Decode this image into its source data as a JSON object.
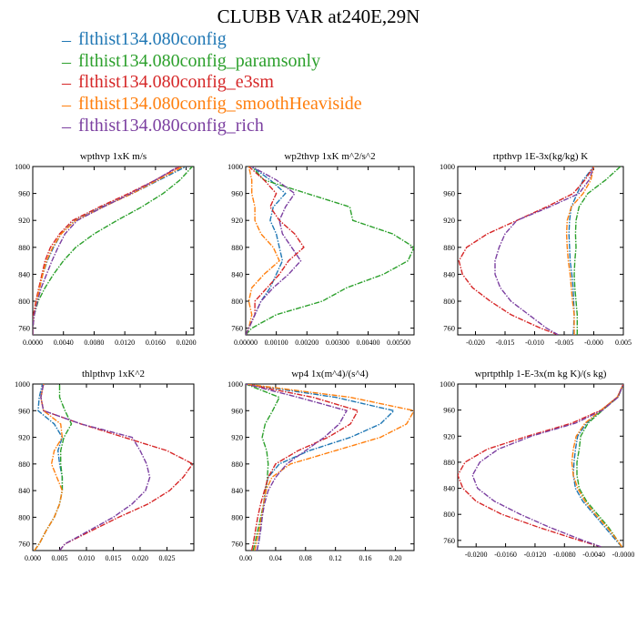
{
  "title": "CLUBB VAR at240E,29N",
  "series": [
    {
      "name": "flthist134.080config",
      "color": "#1f77b4"
    },
    {
      "name": "flthist134.080config_paramsonly",
      "color": "#2ca02c"
    },
    {
      "name": "flthist134.080config_e3sm",
      "color": "#d62728"
    },
    {
      "name": "flthist134.080config_smoothHeaviside",
      "color": "#ff7f0e"
    },
    {
      "name": "flthist134.080config_rich",
      "color": "#7b3fa0"
    }
  ],
  "chart_data": [
    {
      "type": "line",
      "title": "wpthvp   1xK m/s",
      "ylim": [
        1000,
        750
      ],
      "xlim": [
        0,
        0.021
      ],
      "yticks": [
        760,
        800,
        840,
        880,
        920,
        960,
        1000
      ],
      "xticks": [
        0.0,
        0.004,
        0.008,
        0.012,
        0.016,
        0.02
      ],
      "xticklabels": [
        "0.0000",
        "0.0040",
        "0.0080",
        "0.0120",
        "0.0160",
        "0.0200"
      ],
      "y": [
        750,
        760,
        780,
        800,
        820,
        840,
        860,
        880,
        900,
        920,
        940,
        960,
        980,
        1000
      ],
      "series_x": [
        [
          0.0,
          0.0,
          0.0002,
          0.0005,
          0.0009,
          0.0013,
          0.0019,
          0.0027,
          0.0037,
          0.0055,
          0.009,
          0.013,
          0.0165,
          0.02
        ],
        [
          0.0,
          0.0,
          0.0002,
          0.0007,
          0.0016,
          0.0027,
          0.004,
          0.0056,
          0.008,
          0.011,
          0.0142,
          0.017,
          0.0192,
          0.0208
        ],
        [
          0.0,
          0.0,
          0.0001,
          0.0004,
          0.0008,
          0.0012,
          0.0016,
          0.0023,
          0.0035,
          0.0052,
          0.0087,
          0.0125,
          0.016,
          0.0192
        ],
        [
          0.0,
          0.0,
          0.0002,
          0.0005,
          0.0009,
          0.0013,
          0.0018,
          0.0026,
          0.0037,
          0.0056,
          0.0092,
          0.013,
          0.0163,
          0.0196
        ],
        [
          0.0,
          0.0,
          0.0002,
          0.0006,
          0.0011,
          0.0018,
          0.0025,
          0.0033,
          0.0042,
          0.0058,
          0.0092,
          0.0128,
          0.016,
          0.019
        ]
      ]
    },
    {
      "type": "line",
      "title": "wp2thvp   1xK m^2/s^2",
      "ylim": [
        1000,
        750
      ],
      "xlim": [
        0,
        0.0055
      ],
      "yticks": [
        760,
        800,
        840,
        880,
        920,
        960,
        1000
      ],
      "xticks": [
        0.0,
        0.001,
        0.002,
        0.003,
        0.004,
        0.005
      ],
      "xticklabels": [
        "0.00000",
        "0.00100",
        "0.00200",
        "0.00300",
        "0.00400",
        "0.00500"
      ],
      "y": [
        750,
        760,
        780,
        800,
        820,
        840,
        860,
        880,
        900,
        920,
        940,
        960,
        980,
        1000
      ],
      "series_x": [
        [
          0.0,
          0.0001,
          0.0003,
          0.0005,
          0.0008,
          0.001,
          0.0012,
          0.0011,
          0.001,
          0.0008,
          0.0009,
          0.0013,
          0.0008,
          0.0002
        ],
        [
          0.0,
          0.0002,
          0.001,
          0.0025,
          0.0033,
          0.0045,
          0.0053,
          0.0055,
          0.0048,
          0.0035,
          0.0034,
          0.002,
          0.0006,
          0.0002
        ],
        [
          0.0,
          0.0001,
          0.0003,
          0.0003,
          0.0007,
          0.0011,
          0.0014,
          0.0019,
          0.0016,
          0.0011,
          0.0008,
          0.001,
          0.0006,
          0.0001
        ],
        [
          0.0,
          0.0001,
          0.0002,
          0.0001,
          0.0002,
          0.0006,
          0.0011,
          0.0009,
          0.0005,
          0.0003,
          0.0003,
          0.0002,
          0.0002,
          0.0001
        ],
        [
          0.0,
          0.0001,
          0.0003,
          0.0005,
          0.0009,
          0.0014,
          0.0018,
          0.0015,
          0.0012,
          0.0011,
          0.0013,
          0.0016,
          0.001,
          0.0002
        ]
      ]
    },
    {
      "type": "line",
      "title": "rtpthvp   1E-3x(kg/kg) K",
      "ylim": [
        1000,
        750
      ],
      "xlim": [
        -0.023,
        0.005
      ],
      "yticks": [
        760,
        800,
        840,
        880,
        920,
        960,
        1000
      ],
      "xticks": [
        -0.02,
        -0.015,
        -0.01,
        -0.005,
        0.0,
        0.005
      ],
      "xticklabels": [
        "-0.020",
        "-0.015",
        "-0.010",
        "-0.005",
        "-0.000",
        "0.005"
      ],
      "y": [
        750,
        760,
        780,
        800,
        820,
        840,
        860,
        880,
        900,
        920,
        940,
        960,
        980,
        1000
      ],
      "series_x": [
        [
          -0.0035,
          -0.0034,
          -0.0033,
          -0.0034,
          -0.0035,
          -0.0037,
          -0.004,
          -0.0041,
          -0.0042,
          -0.0041,
          -0.0038,
          -0.0028,
          -0.0018,
          0.0
        ],
        [
          -0.0028,
          -0.0028,
          -0.0028,
          -0.003,
          -0.0032,
          -0.0033,
          -0.0032,
          -0.003,
          -0.0031,
          -0.003,
          -0.0025,
          -0.001,
          0.002,
          0.0045
        ],
        [
          -0.006,
          -0.009,
          -0.014,
          -0.0175,
          -0.0205,
          -0.0222,
          -0.0228,
          -0.0215,
          -0.018,
          -0.013,
          -0.008,
          -0.0035,
          -0.0015,
          0.0
        ],
        [
          -0.0033,
          -0.0033,
          -0.0033,
          -0.0036,
          -0.0038,
          -0.004,
          -0.0043,
          -0.0045,
          -0.0046,
          -0.0045,
          -0.0038,
          -0.0018,
          -0.0005,
          0.0
        ],
        [
          -0.006,
          -0.008,
          -0.011,
          -0.014,
          -0.0158,
          -0.0167,
          -0.0167,
          -0.016,
          -0.015,
          -0.013,
          -0.0075,
          -0.0025,
          -0.0008,
          0.0
        ]
      ]
    },
    {
      "type": "line",
      "title": "thlpthvp   1xK^2",
      "ylim": [
        1000,
        750
      ],
      "xlim": [
        0,
        0.03
      ],
      "yticks": [
        760,
        800,
        840,
        880,
        920,
        960,
        1000
      ],
      "xticks": [
        0.0,
        0.005,
        0.01,
        0.015,
        0.02,
        0.025
      ],
      "xticklabels": [
        "0.000",
        "0.005",
        "0.010",
        "0.015",
        "0.020",
        "0.025"
      ],
      "y": [
        750,
        760,
        780,
        800,
        820,
        840,
        860,
        880,
        900,
        920,
        940,
        960,
        980,
        1000
      ],
      "series_x": [
        [
          0.0003,
          0.0012,
          0.0025,
          0.004,
          0.005,
          0.0055,
          0.0055,
          0.005,
          0.0047,
          0.0055,
          0.004,
          0.001,
          0.0012,
          0.0018
        ],
        [
          0.0003,
          0.0012,
          0.0025,
          0.004,
          0.005,
          0.0055,
          0.0055,
          0.0052,
          0.0052,
          0.0058,
          0.0072,
          0.006,
          0.005,
          0.005
        ],
        [
          0.005,
          0.006,
          0.011,
          0.016,
          0.0215,
          0.0255,
          0.028,
          0.0298,
          0.025,
          0.017,
          0.009,
          0.002,
          0.0015,
          0.002
        ],
        [
          0.0003,
          0.0012,
          0.0025,
          0.004,
          0.005,
          0.0055,
          0.0045,
          0.0035,
          0.004,
          0.0055,
          0.0052,
          0.002,
          0.0015,
          0.002
        ],
        [
          0.005,
          0.006,
          0.0105,
          0.015,
          0.0185,
          0.021,
          0.0218,
          0.0212,
          0.02,
          0.0185,
          0.009,
          0.002,
          0.0015,
          0.002
        ]
      ]
    },
    {
      "type": "line",
      "title": "wp4   1x(m^4)/(s^4)",
      "ylim": [
        1000,
        750
      ],
      "xlim": [
        0,
        0.225
      ],
      "yticks": [
        760,
        800,
        840,
        880,
        920,
        960,
        1000
      ],
      "xticks": [
        0.0,
        0.04,
        0.08,
        0.12,
        0.16,
        0.2
      ],
      "xticklabels": [
        "0.00",
        "0.04",
        "0.08",
        "0.12",
        "0.16",
        "0.20"
      ],
      "y": [
        750,
        760,
        780,
        800,
        820,
        840,
        860,
        880,
        900,
        920,
        940,
        960,
        980,
        1000
      ],
      "series_x": [
        [
          0.015,
          0.017,
          0.02,
          0.022,
          0.024,
          0.026,
          0.03,
          0.045,
          0.085,
          0.14,
          0.18,
          0.198,
          0.12,
          0.0
        ],
        [
          0.01,
          0.012,
          0.016,
          0.02,
          0.024,
          0.027,
          0.029,
          0.03,
          0.028,
          0.022,
          0.026,
          0.036,
          0.045,
          0.0
        ],
        [
          0.008,
          0.01,
          0.013,
          0.016,
          0.02,
          0.025,
          0.03,
          0.04,
          0.07,
          0.11,
          0.14,
          0.15,
          0.09,
          0.0
        ],
        [
          0.012,
          0.014,
          0.018,
          0.021,
          0.024,
          0.027,
          0.035,
          0.06,
          0.12,
          0.18,
          0.215,
          0.225,
          0.14,
          0.0
        ],
        [
          0.015,
          0.017,
          0.02,
          0.022,
          0.025,
          0.03,
          0.04,
          0.055,
          0.08,
          0.105,
          0.125,
          0.135,
          0.07,
          0.0
        ]
      ]
    },
    {
      "type": "line",
      "title": "wprtpthlp   1-E-3x(m kg K)/(s kg)",
      "ylim": [
        1000,
        750
      ],
      "xlim": [
        -0.0225,
        0.0
      ],
      "yticks": [
        760,
        800,
        840,
        880,
        920,
        960,
        1000
      ],
      "xticks": [
        -0.02,
        -0.016,
        -0.012,
        -0.008,
        -0.004,
        0.0
      ],
      "xticklabels": [
        "-0.0200",
        "-0.0160",
        "-0.0120",
        "-0.0080",
        "-0.0040",
        "-0.0000"
      ],
      "y": [
        750,
        760,
        780,
        800,
        820,
        840,
        860,
        880,
        900,
        920,
        940,
        960,
        980,
        1000
      ],
      "series_x": [
        [
          -0.0002,
          -0.001,
          -0.0025,
          -0.004,
          -0.0055,
          -0.0065,
          -0.0068,
          -0.0067,
          -0.0065,
          -0.0062,
          -0.005,
          -0.003,
          -0.0008,
          0.0
        ],
        [
          -0.0002,
          -0.0008,
          -0.002,
          -0.0035,
          -0.005,
          -0.006,
          -0.0063,
          -0.0063,
          -0.006,
          -0.0058,
          -0.0048,
          -0.0028,
          -0.0007,
          0.0
        ],
        [
          -0.003,
          -0.006,
          -0.0115,
          -0.0165,
          -0.02,
          -0.0218,
          -0.0225,
          -0.0215,
          -0.0185,
          -0.013,
          -0.007,
          -0.003,
          -0.0008,
          0.0
        ],
        [
          -0.0002,
          -0.0008,
          -0.0022,
          -0.0038,
          -0.0052,
          -0.0062,
          -0.0068,
          -0.007,
          -0.0068,
          -0.0064,
          -0.0052,
          -0.003,
          -0.0008,
          0.0
        ],
        [
          -0.003,
          -0.0055,
          -0.01,
          -0.014,
          -0.0175,
          -0.0198,
          -0.0205,
          -0.0195,
          -0.017,
          -0.0125,
          -0.0065,
          -0.0028,
          -0.0007,
          0.0
        ]
      ]
    }
  ]
}
